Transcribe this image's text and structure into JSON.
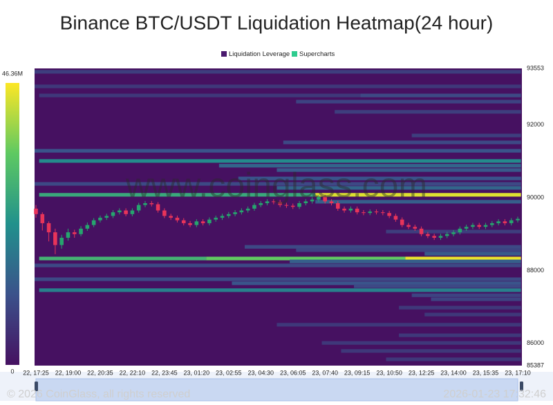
{
  "chart_data": {
    "type": "heatmap",
    "title": "Binance BTC/USDT Liquidation Heatmap(24 hour)",
    "watermark": "www.coinglass.com",
    "footer_left": "© 2026 CoinGlass, all rights reserved",
    "footer_right": "2026-01-23 17:32:46",
    "x": [
      "22, 17:25",
      null,
      null,
      null,
      null,
      "22, 19:00",
      null,
      null,
      null,
      null,
      "22, 20:35",
      null,
      null,
      null,
      null,
      "22, 22:10",
      null,
      null,
      null,
      null,
      "22, 23:45",
      null,
      null,
      null,
      null,
      "23, 01:20",
      null,
      null,
      null,
      null,
      "23, 02:55",
      null,
      null,
      null,
      null,
      "23, 04:30",
      null,
      null,
      null,
      null,
      "23, 06:05",
      null,
      null,
      null,
      null,
      "23, 07:40",
      null,
      null,
      null,
      null,
      "23, 09:15",
      null,
      null,
      null,
      null,
      "23, 10:50",
      null,
      null,
      null,
      null,
      "23, 12:25",
      null,
      null,
      null,
      null,
      "23, 14:00",
      null,
      null,
      null,
      null,
      "23, 15:35",
      null,
      null,
      null,
      null,
      "23, 17:10"
    ],
    "ylim": [
      85387,
      93553
    ],
    "yticks": [
      85387,
      86000,
      88000,
      90000,
      92000,
      93553
    ],
    "clim": [
      0,
      46360000
    ],
    "cticks": [
      0,
      {
        "value": 46360000,
        "label": "46.36M"
      }
    ],
    "colormap": [
      "#461161",
      "#3b528b",
      "#21918c",
      "#5ec962",
      "#fde725"
    ],
    "series": [
      {
        "name": "Liquidation Leverage",
        "type": "heatmap",
        "color": "#4a1a6e",
        "bands": [
          {
            "price": 93460,
            "start": 0,
            "end": 75,
            "value": 8000000
          },
          {
            "price": 93060,
            "start": 0,
            "end": 75,
            "value": 7000000
          },
          {
            "price": 92810,
            "start": 1,
            "end": 50,
            "value": 7000000
          },
          {
            "price": 92810,
            "start": 51,
            "end": 75,
            "value": 10000000
          },
          {
            "price": 92640,
            "start": 41,
            "end": 75,
            "value": 9000000
          },
          {
            "price": 92360,
            "start": 47,
            "end": 75,
            "value": 8000000
          },
          {
            "price": 91710,
            "start": 59,
            "end": 75,
            "value": 8000000
          },
          {
            "price": 91520,
            "start": 39,
            "end": 75,
            "value": 10000000
          },
          {
            "price": 91290,
            "start": 0,
            "end": 75,
            "value": 12000000
          },
          {
            "price": 91010,
            "start": 1,
            "end": 75,
            "value": 22000000
          },
          {
            "price": 90880,
            "start": 29,
            "end": 75,
            "value": 15000000
          },
          {
            "price": 90760,
            "start": 38,
            "end": 75,
            "value": 13000000
          },
          {
            "price": 90530,
            "start": 32,
            "end": 75,
            "value": 12000000
          },
          {
            "price": 90380,
            "start": 0,
            "end": 75,
            "value": 10000000
          },
          {
            "price": 90270,
            "start": 38,
            "end": 75,
            "value": 15000000
          },
          {
            "price": 90080,
            "start": 1,
            "end": 43,
            "value": 28000000
          },
          {
            "price": 90080,
            "start": 44,
            "end": 75,
            "value": 44000000
          },
          {
            "price": 89890,
            "start": 44,
            "end": 75,
            "value": 14000000
          },
          {
            "price": 89070,
            "start": 55,
            "end": 75,
            "value": 8000000
          },
          {
            "price": 88650,
            "start": 33,
            "end": 75,
            "value": 10000000
          },
          {
            "price": 88560,
            "start": 41,
            "end": 75,
            "value": 9000000
          },
          {
            "price": 88460,
            "start": 61,
            "end": 75,
            "value": 13000000
          },
          {
            "price": 88330,
            "start": 1,
            "end": 26,
            "value": 30000000
          },
          {
            "price": 88330,
            "start": 27,
            "end": 57,
            "value": 35000000
          },
          {
            "price": 88330,
            "start": 58,
            "end": 75,
            "value": 45000000
          },
          {
            "price": 88250,
            "start": 40,
            "end": 75,
            "value": 14000000
          },
          {
            "price": 88140,
            "start": 0,
            "end": 75,
            "value": 10000000
          },
          {
            "price": 87760,
            "start": 0,
            "end": 75,
            "value": 10000000
          },
          {
            "price": 87650,
            "start": 31,
            "end": 75,
            "value": 12000000
          },
          {
            "price": 87570,
            "start": 50,
            "end": 75,
            "value": 10000000
          },
          {
            "price": 87460,
            "start": 1,
            "end": 75,
            "value": 20000000
          },
          {
            "price": 87320,
            "start": 59,
            "end": 75,
            "value": 9000000
          },
          {
            "price": 87210,
            "start": 62,
            "end": 75,
            "value": 9000000
          },
          {
            "price": 86980,
            "start": 57,
            "end": 75,
            "value": 7000000
          },
          {
            "price": 86790,
            "start": 61,
            "end": 75,
            "value": 7000000
          },
          {
            "price": 86510,
            "start": 38,
            "end": 75,
            "value": 7000000
          },
          {
            "price": 86220,
            "start": 57,
            "end": 75,
            "value": 7000000
          },
          {
            "price": 86010,
            "start": 45,
            "end": 75,
            "value": 7000000
          },
          {
            "price": 85790,
            "start": 48,
            "end": 75,
            "value": 7000000
          },
          {
            "price": 85560,
            "start": 55,
            "end": 75,
            "value": 7000000
          }
        ]
      },
      {
        "name": "Supercharts",
        "type": "candlestick",
        "color": "#2ecc8f",
        "up_color": "#26a56e",
        "down_color": "#e8345a",
        "open": [
          89700,
          89550,
          89300,
          89050,
          88700,
          88900,
          89050,
          89000,
          89150,
          89250,
          89380,
          89450,
          89500,
          89600,
          89650,
          89550,
          89650,
          89800,
          89850,
          89820,
          89650,
          89500,
          89450,
          89380,
          89300,
          89250,
          89350,
          89300,
          89400,
          89450,
          89500,
          89550,
          89600,
          89650,
          89700,
          89800,
          89850,
          89900,
          89880,
          89800,
          89780,
          89750,
          89850,
          89900,
          89950,
          90020,
          89900,
          89850,
          89700,
          89650,
          89700,
          89600,
          89580,
          89620,
          89600,
          89580,
          89500,
          89400,
          89250,
          89200,
          89150,
          89000,
          88950,
          88900,
          88950,
          89000,
          89050,
          89150,
          89200,
          89250,
          89200,
          89250,
          89300,
          89350,
          89300,
          89380
        ],
        "high": [
          89800,
          89600,
          89350,
          89150,
          88980,
          89150,
          89120,
          89220,
          89320,
          89440,
          89510,
          89560,
          89660,
          89710,
          89710,
          89710,
          89860,
          89910,
          89910,
          89880,
          89710,
          89560,
          89510,
          89440,
          89360,
          89410,
          89410,
          89460,
          89510,
          89560,
          89610,
          89660,
          89710,
          89760,
          89860,
          89910,
          89960,
          89960,
          89940,
          89860,
          89840,
          89910,
          89960,
          90010,
          90080,
          90080,
          89960,
          89910,
          89760,
          89760,
          89760,
          89660,
          89680,
          89680,
          89660,
          89640,
          89560,
          89460,
          89310,
          89260,
          89210,
          89060,
          89010,
          89010,
          89060,
          89110,
          89210,
          89260,
          89310,
          89310,
          89310,
          89360,
          89410,
          89410,
          89440,
          89480
        ],
        "low": [
          89450,
          89100,
          88800,
          88450,
          88600,
          88820,
          88900,
          88940,
          89090,
          89190,
          89320,
          89390,
          89440,
          89540,
          89490,
          89490,
          89590,
          89740,
          89760,
          89590,
          89440,
          89390,
          89320,
          89240,
          89190,
          89190,
          89240,
          89240,
          89340,
          89390,
          89440,
          89490,
          89540,
          89590,
          89640,
          89740,
          89790,
          89820,
          89740,
          89720,
          89690,
          89690,
          89790,
          89840,
          89890,
          89840,
          89790,
          89640,
          89590,
          89590,
          89540,
          89520,
          89520,
          89540,
          89520,
          89440,
          89340,
          89190,
          89140,
          89090,
          88940,
          88890,
          88840,
          88840,
          88890,
          88940,
          88990,
          89090,
          89140,
          89140,
          89140,
          89190,
          89240,
          89240,
          89240,
          89320
        ],
        "close": [
          89550,
          89300,
          89050,
          88700,
          88900,
          89050,
          89000,
          89150,
          89250,
          89380,
          89450,
          89500,
          89600,
          89650,
          89550,
          89650,
          89800,
          89850,
          89820,
          89650,
          89500,
          89450,
          89380,
          89300,
          89250,
          89350,
          89300,
          89400,
          89450,
          89500,
          89550,
          89600,
          89650,
          89700,
          89800,
          89850,
          89900,
          89880,
          89800,
          89780,
          89750,
          89850,
          89900,
          89950,
          90020,
          89900,
          89850,
          89700,
          89650,
          89700,
          89600,
          89580,
          89620,
          89600,
          89580,
          89500,
          89400,
          89250,
          89200,
          89150,
          89000,
          88950,
          88900,
          88950,
          89000,
          89050,
          89150,
          89200,
          89250,
          89200,
          89250,
          89300,
          89350,
          89300,
          89380,
          89420
        ]
      }
    ]
  }
}
